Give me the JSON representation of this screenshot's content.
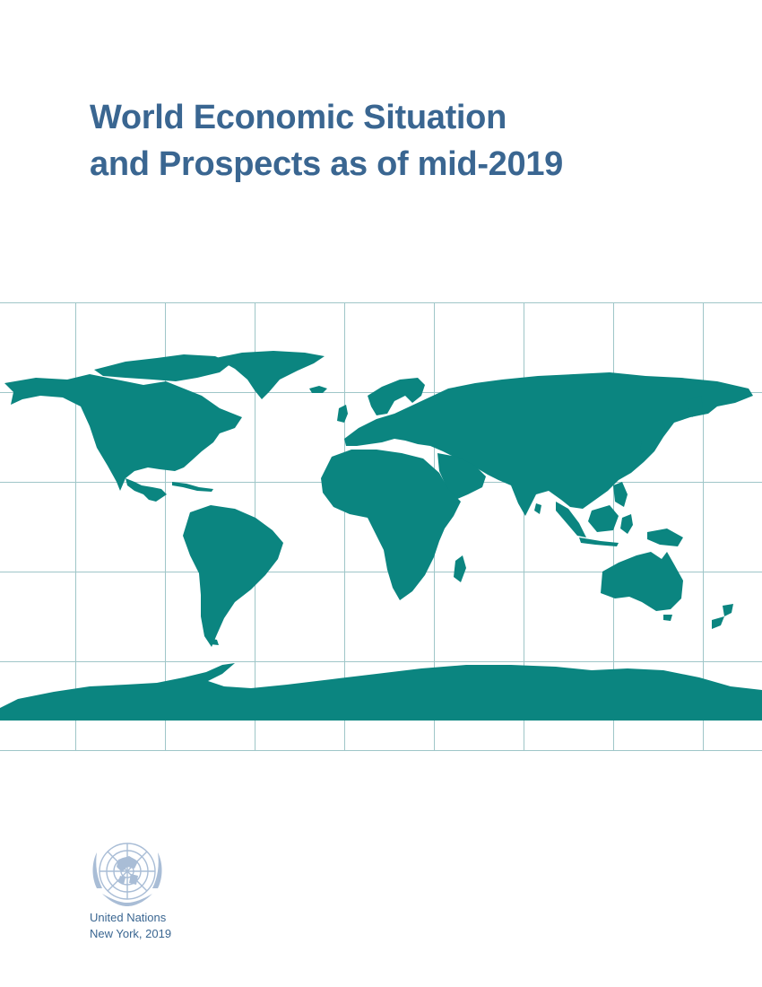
{
  "cover": {
    "title_line1": "World Economic Situation",
    "title_line2": "and Prospects as of mid-2019"
  },
  "publisher": {
    "name": "United Nations",
    "place_year": "New York, 2019"
  },
  "colors": {
    "title": "#3a6691",
    "land": "#0b8580",
    "grid": "#9fc6c8",
    "emblem": "#a9bdd6"
  },
  "icons": {
    "map": "world-map-icon",
    "logo": "united-nations-emblem-icon"
  }
}
